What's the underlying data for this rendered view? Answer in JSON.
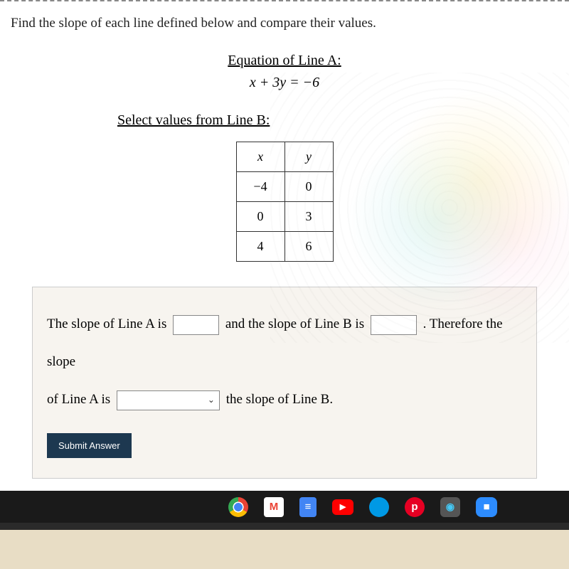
{
  "prompt": "Find the slope of each line defined below and compare their values.",
  "line_a": {
    "heading": "Equation of Line A:",
    "equation_lhs": "x + 3y",
    "equation_eq": " = ",
    "equation_rhs": "−6"
  },
  "line_b": {
    "heading": "Select values from Line B:",
    "table": {
      "headers": [
        "x",
        "y"
      ],
      "rows": [
        [
          "−4",
          "0"
        ],
        [
          "0",
          "3"
        ],
        [
          "4",
          "6"
        ]
      ]
    }
  },
  "answer": {
    "text1": "The slope of Line A is",
    "text2": "and the slope of Line B is",
    "text3": ". Therefore the slope",
    "text4": "of Line A is",
    "text5": "the slope of Line B."
  },
  "submit_label": "Submit Answer",
  "colors": {
    "page_bg": "#ffffff",
    "answer_bg": "#f7f4ef",
    "submit_bg": "#1d3850",
    "submit_fg": "#ffffff",
    "border": "#333333"
  }
}
